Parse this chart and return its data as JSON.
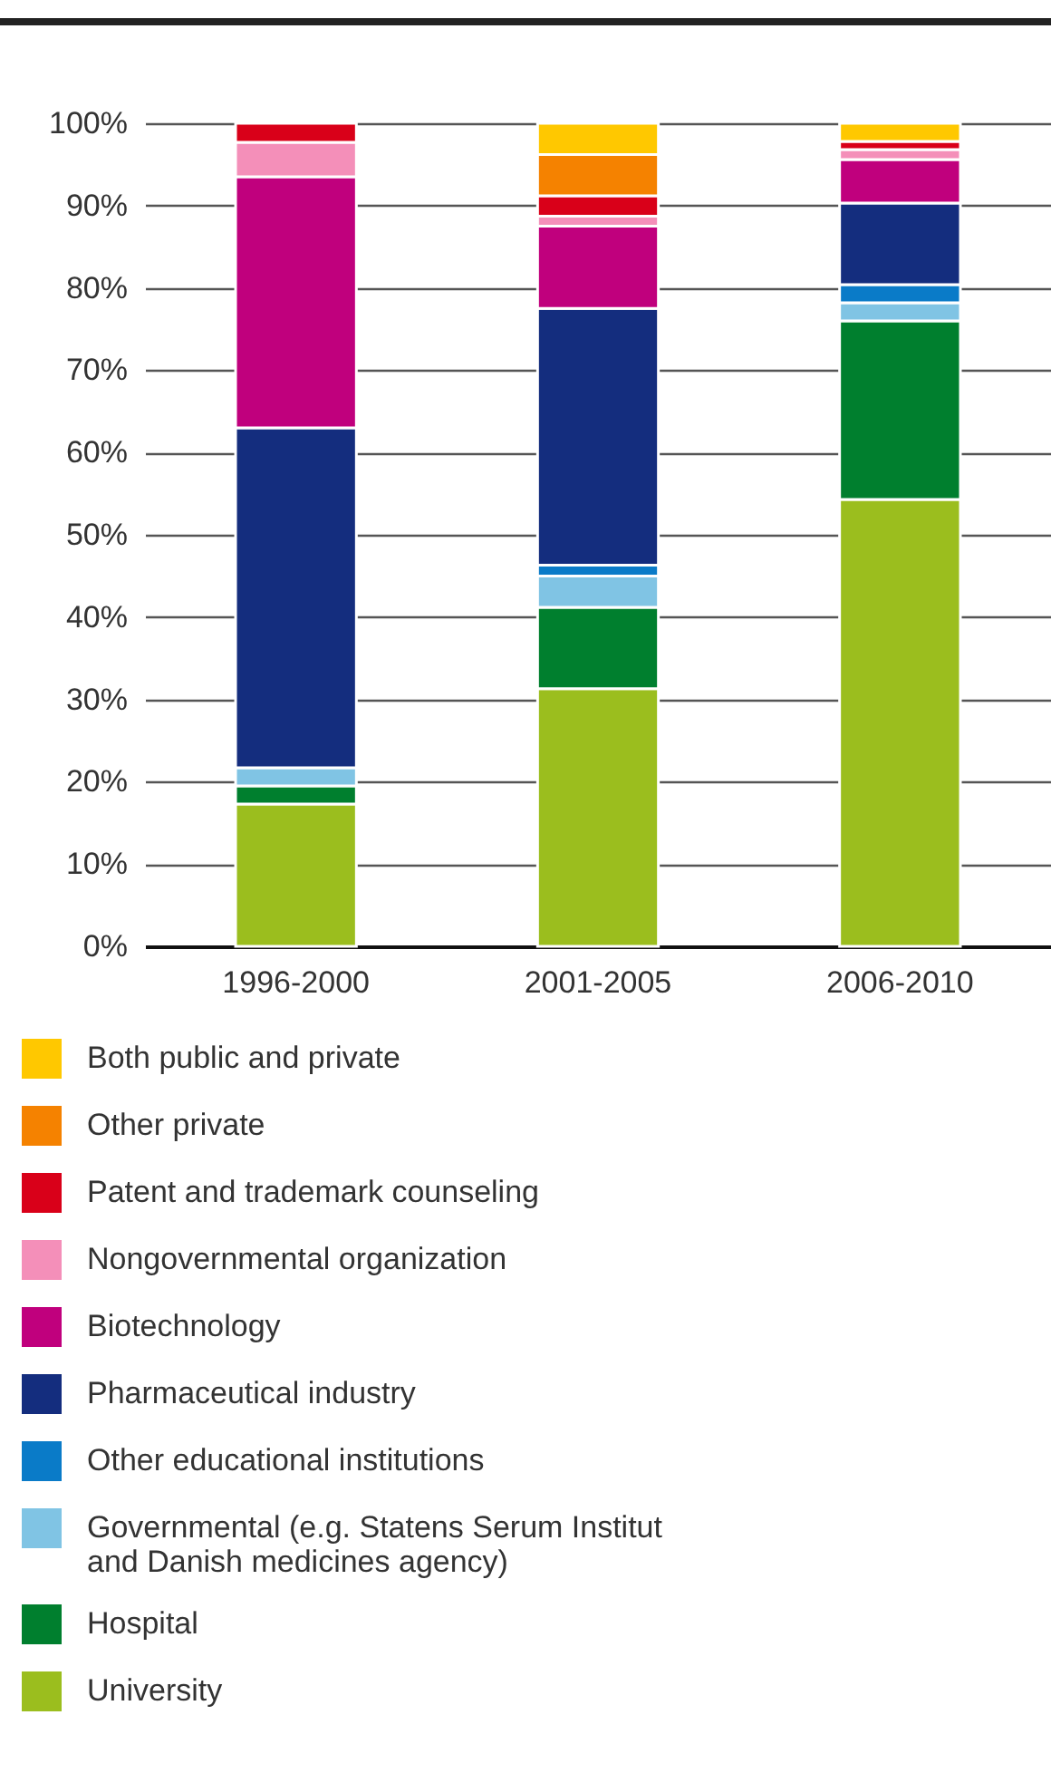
{
  "chart_data": {
    "type": "bar",
    "stacked": true,
    "categories": [
      "1996-2000",
      "2001-2005",
      "2006-2010"
    ],
    "series": [
      {
        "name": "University",
        "color": "#9bbe1e",
        "values": [
          17.3,
          31.3,
          54.3
        ]
      },
      {
        "name": "Hospital",
        "color": "#007f2e",
        "values": [
          2.2,
          9.9,
          21.7
        ]
      },
      {
        "name": "Governmental (e.g. Statens Serum Institut and Danish medicines agency)",
        "color": "#80c4e4",
        "values": [
          2.2,
          3.8,
          2.2
        ]
      },
      {
        "name": "Other educational institutions",
        "color": "#0a7bc8",
        "values": [
          null,
          1.3,
          2.2
        ]
      },
      {
        "name": "Pharmaceutical industry",
        "color": "#142d7e",
        "values": [
          41.3,
          31.2,
          9.9
        ]
      },
      {
        "name": "Biotechnology",
        "color": "#c0007d",
        "values": [
          30.5,
          10.0,
          5.3
        ]
      },
      {
        "name": "Nongovernmental organization",
        "color": "#f48fb9",
        "values": [
          4.2,
          1.2,
          1.2
        ]
      },
      {
        "name": "Patent and trademark counseling",
        "color": "#d90019",
        "values": [
          2.3,
          2.5,
          1.0
        ]
      },
      {
        "name": "Other private",
        "color": "#f58200",
        "values": [
          null,
          5.0,
          null
        ]
      },
      {
        "name": "Both public and private",
        "color": "#ffc800",
        "values": [
          null,
          3.8,
          2.2
        ]
      }
    ],
    "ylim": [
      0,
      100
    ],
    "yticks": [
      {
        "value": 0,
        "label": "0%"
      },
      {
        "value": 10,
        "label": "10%"
      },
      {
        "value": 20,
        "label": "20%"
      },
      {
        "value": 30,
        "label": "30%"
      },
      {
        "value": 40,
        "label": "40%"
      },
      {
        "value": 50,
        "label": "50%"
      },
      {
        "value": 60,
        "label": "60%"
      },
      {
        "value": 70,
        "label": "70%"
      },
      {
        "value": 80,
        "label": "80%"
      },
      {
        "value": 90,
        "label": "90%"
      },
      {
        "value": 100,
        "label": "100%"
      }
    ],
    "grid": "y",
    "legend": "bottom"
  }
}
